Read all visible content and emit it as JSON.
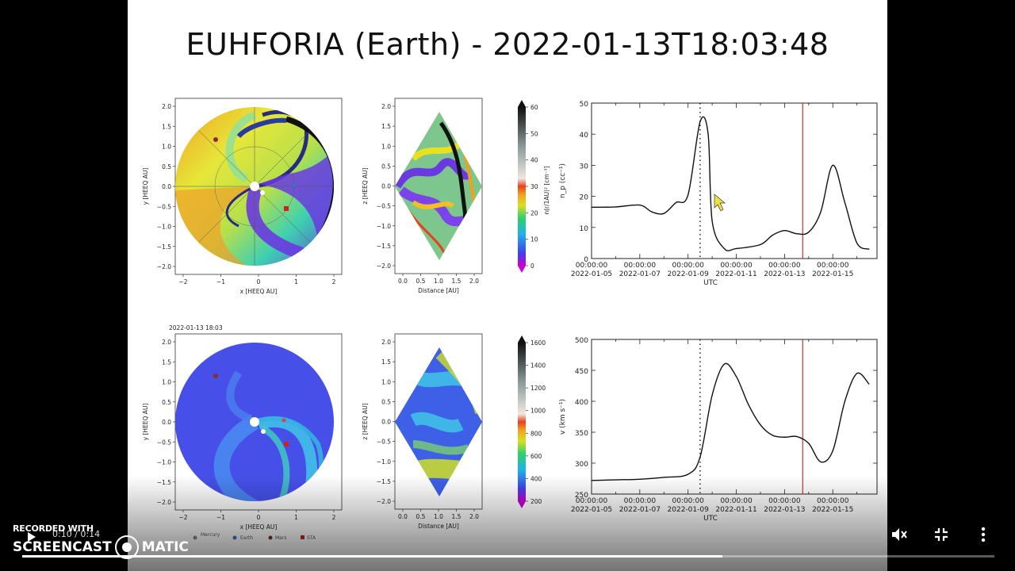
{
  "slide": {
    "title": "EUHFORIA (Earth) -  2022-01-13T18:03:48",
    "bottom_timestamp": "2022-01-13 18:03",
    "left_x_ticks": [
      "−2",
      "−1",
      "0",
      "1",
      "2"
    ],
    "left_y_ticks": [
      "2.0",
      "1.5",
      "1.0",
      "0.5",
      "0.0",
      "−0.5",
      "−1.0",
      "−1.5",
      "−2.0"
    ],
    "left_xlabel": "x [HEEQ AU]",
    "left_ylabel": "y [HEEQ AU]",
    "mid_x_ticks": [
      "0.0",
      "0.5",
      "1.0",
      "1.5",
      "2.0"
    ],
    "mid_y_ticks": [
      "2.0",
      "1.5",
      "1.0",
      "0.5",
      "0.0",
      "−0.5",
      "−1.0",
      "−1.5",
      "−2.0"
    ],
    "mid_xlabel": "Distance [AU]",
    "mid_ylabel": "z [HEEQ AU]",
    "cbar_top_ticks": [
      "60",
      "50",
      "40",
      "30",
      "20",
      "10",
      "0"
    ],
    "cbar_top_label": "n(r/1AU)² [cm⁻³]",
    "cbar_bottom_ticks": [
      "1600",
      "1400",
      "1200",
      "1000",
      "800",
      "600",
      "400",
      "200"
    ],
    "legend": [
      "Mercury",
      "Earth",
      "Mars",
      "STA"
    ],
    "legend_colors": [
      "#888888",
      "#3a6fd0",
      "#8b2a2a",
      "#cc2222"
    ]
  },
  "chart_data": [
    {
      "type": "line",
      "ylabel": "n_p (cc⁻¹)",
      "xlabel": "UTC",
      "ylim": [
        0,
        50
      ],
      "y_ticks": [
        "50",
        "40",
        "30",
        "20",
        "10",
        "0"
      ],
      "x_tick_labels": [
        [
          "00:00:00",
          "2022-01-05"
        ],
        [
          "00:00:00",
          "2022-01-07"
        ],
        [
          "00:00:00",
          "2022-01-09"
        ],
        [
          "00:00:00",
          "2022-01-11"
        ],
        [
          "00:00:00",
          "2022-01-13"
        ],
        [
          "00:00:00",
          "2022-01-15"
        ]
      ],
      "x": [
        "2022-01-05",
        "2022-01-06",
        "2022-01-07",
        "2022-01-07T12",
        "2022-01-08",
        "2022-01-08T12",
        "2022-01-09",
        "2022-01-09T12",
        "2022-01-09T20",
        "2022-01-10",
        "2022-01-10T12",
        "2022-01-11",
        "2022-01-12",
        "2022-01-12T12",
        "2022-01-13",
        "2022-01-13T12",
        "2022-01-14",
        "2022-01-14T12",
        "2022-01-15",
        "2022-01-15T12",
        "2022-01-16",
        "2022-01-16T12"
      ],
      "values": [
        16.5,
        16.6,
        17.2,
        15,
        14.5,
        18,
        20.5,
        44,
        40,
        12,
        3.2,
        3.2,
        4.5,
        7.5,
        9,
        8,
        8.5,
        15,
        30,
        18,
        5,
        3
      ],
      "markers": {
        "dotted_vertical": "2022-01-09",
        "red_vertical": "2022-01-13T18:03"
      }
    },
    {
      "type": "line",
      "ylabel": "v (km s⁻¹)",
      "xlabel": "UTC",
      "ylim": [
        250,
        500
      ],
      "y_ticks": [
        "500",
        "450",
        "400",
        "350",
        "300",
        "250"
      ],
      "x_tick_labels": [
        [
          "00:00:00",
          "2022-01-05"
        ],
        [
          "00:00:00",
          "2022-01-07"
        ],
        [
          "00:00:00",
          "2022-01-09"
        ],
        [
          "00:00:00",
          "2022-01-11"
        ],
        [
          "00:00:00",
          "2022-01-13"
        ],
        [
          "00:00:00",
          "2022-01-15"
        ]
      ],
      "x": [
        "2022-01-05",
        "2022-01-06",
        "2022-01-07",
        "2022-01-08",
        "2022-01-09",
        "2022-01-09T12",
        "2022-01-10",
        "2022-01-10T12",
        "2022-01-11",
        "2022-01-11T12",
        "2022-01-12",
        "2022-01-12T12",
        "2022-01-13",
        "2022-01-13T12",
        "2022-01-14",
        "2022-01-14T12",
        "2022-01-15",
        "2022-01-15T12",
        "2022-01-16",
        "2022-01-16T12"
      ],
      "values": [
        272,
        273,
        274,
        277,
        282,
        310,
        410,
        460,
        440,
        395,
        362,
        345,
        342,
        343,
        332,
        302,
        320,
        400,
        445,
        428
      ],
      "markers": {
        "dotted_vertical": "2022-01-09",
        "red_vertical": "2022-01-13T18:03"
      }
    }
  ],
  "player": {
    "brand_top": "RECORDED WITH",
    "brand_left": "SCREENCAST",
    "brand_right": "MATIC",
    "time": "0:10 / 0:14",
    "progress": 0.72
  }
}
